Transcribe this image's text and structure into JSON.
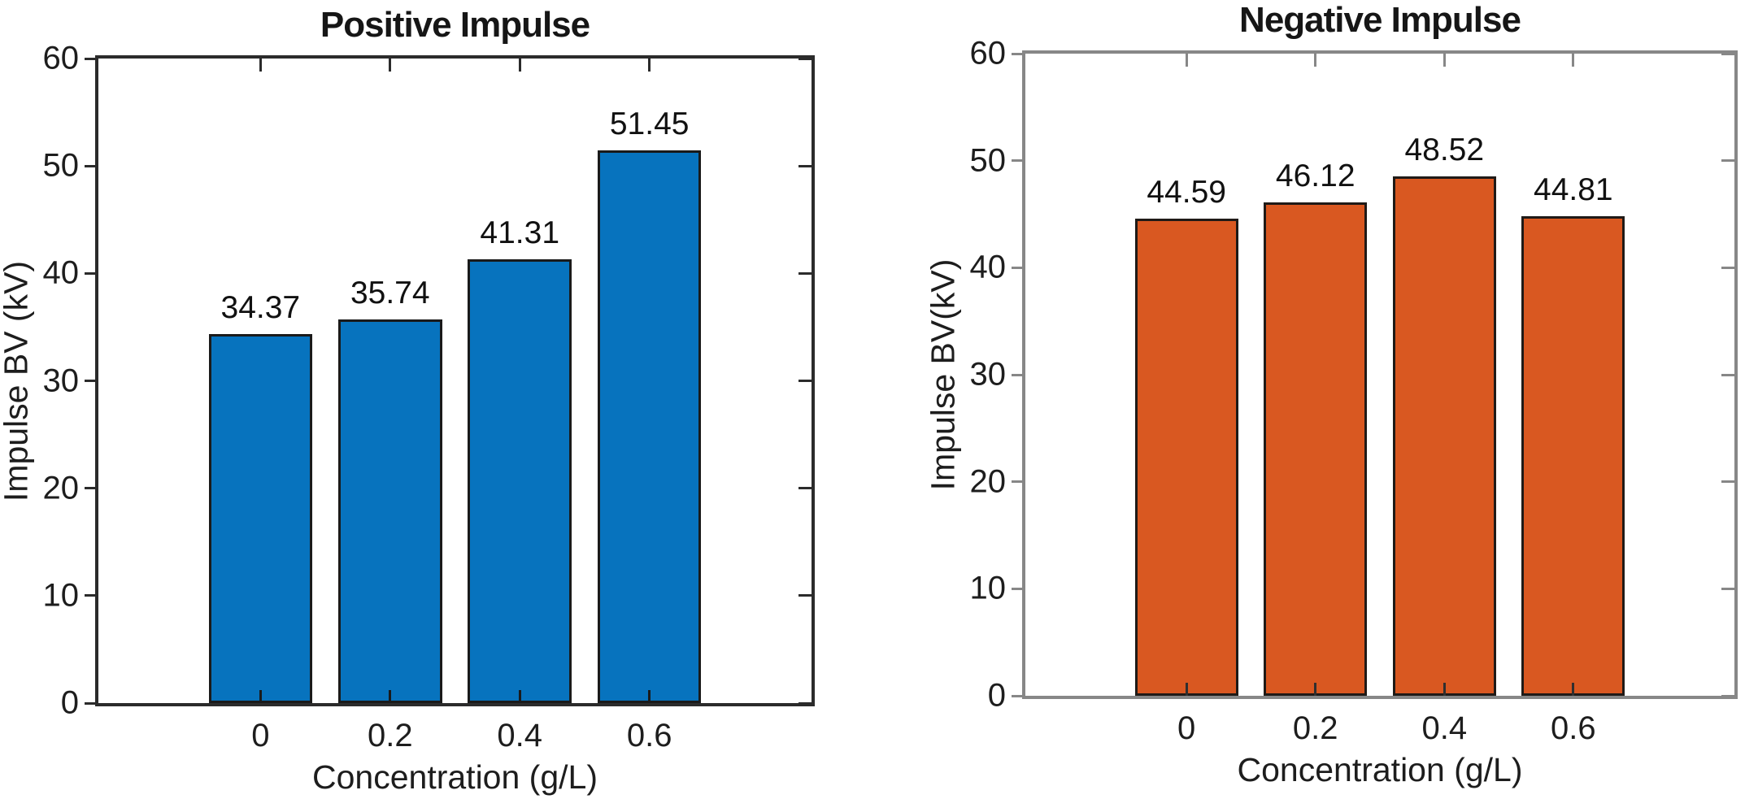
{
  "figure": {
    "background": "#ffffff",
    "text_color": "#1a1a1a"
  },
  "chart_data": [
    {
      "type": "bar",
      "title": "Positive Impulse",
      "xlabel": "Concentration (g/L)",
      "ylabel": "Impulse BV (kV)",
      "categories": [
        "0",
        "0.2",
        "0.4",
        "0.6"
      ],
      "x": [
        0,
        0.2,
        0.4,
        0.6
      ],
      "values": [
        34.37,
        35.74,
        41.31,
        51.45
      ],
      "value_labels": [
        "34.37",
        "35.74",
        "41.31",
        "51.45"
      ],
      "ylim": [
        0,
        60
      ],
      "yticks": [
        0,
        10,
        20,
        30,
        40,
        50,
        60
      ],
      "ytick_labels": [
        "0",
        "10",
        "20",
        "30",
        "40",
        "50",
        "60"
      ],
      "xlim": [
        -0.25,
        0.85
      ],
      "bar_width_data_units": 0.16,
      "grid": false,
      "legend": null,
      "bar_color": "#0773BE",
      "bar_edge_color": "#1a1a1a",
      "frame_color": "#2b2b2b",
      "tick_color": "#2b2b2b",
      "bottom_tick_color": "#1a1a1a"
    },
    {
      "type": "bar",
      "title": "Negative Impulse",
      "xlabel": "Concentration (g/L)",
      "ylabel": "Impulse BV(kV)",
      "categories": [
        "0",
        "0.2",
        "0.4",
        "0.6"
      ],
      "x": [
        0,
        0.2,
        0.4,
        0.6
      ],
      "values": [
        44.59,
        46.12,
        48.52,
        44.81
      ],
      "value_labels": [
        "44.59",
        "46.12",
        "48.52",
        "44.81"
      ],
      "ylim": [
        0,
        60
      ],
      "yticks": [
        0,
        10,
        20,
        30,
        40,
        50,
        60
      ],
      "ytick_labels": [
        "0",
        "10",
        "20",
        "30",
        "40",
        "50",
        "60"
      ],
      "xlim": [
        -0.25,
        0.85
      ],
      "bar_width_data_units": 0.16,
      "grid": false,
      "legend": null,
      "bar_color": "#D95821",
      "bar_edge_color": "#1f1a17",
      "frame_color": "#878787",
      "tick_color": "#878787",
      "bottom_tick_color": "#2f2f2f"
    }
  ]
}
